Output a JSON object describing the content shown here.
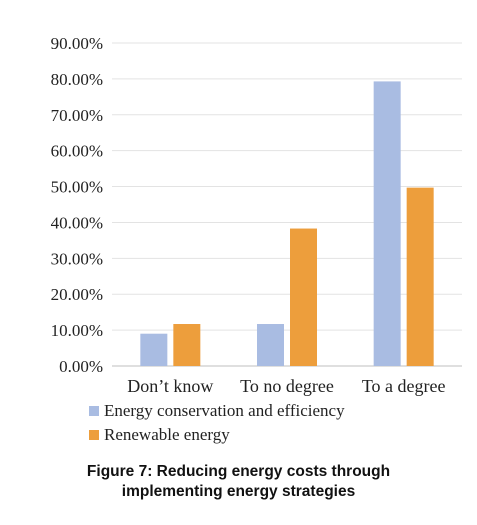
{
  "chart_data": {
    "type": "bar",
    "categories": [
      "Don’t know",
      "To no degree",
      "To a degree"
    ],
    "series": [
      {
        "name": "Energy conservation and efficiency",
        "values": [
          9.0,
          11.7,
          79.3
        ],
        "color": "#A9BCE2"
      },
      {
        "name": "Renewable energy",
        "values": [
          11.7,
          38.3,
          49.7
        ],
        "color": "#ED9E3C"
      }
    ],
    "ylim": [
      0,
      90
    ],
    "yticks": [
      0,
      10,
      20,
      30,
      40,
      50,
      60,
      70,
      80,
      90
    ],
    "ytick_labels": [
      "0.00%",
      "10.00%",
      "20.00%",
      "30.00%",
      "40.00%",
      "50.00%",
      "60.00%",
      "70.00%",
      "80.00%",
      "90.00%"
    ],
    "grid": true,
    "legend_position": "bottom"
  },
  "caption": {
    "line1": "Figure 7: Reducing energy costs through",
    "line2": "implementing energy strategies"
  }
}
